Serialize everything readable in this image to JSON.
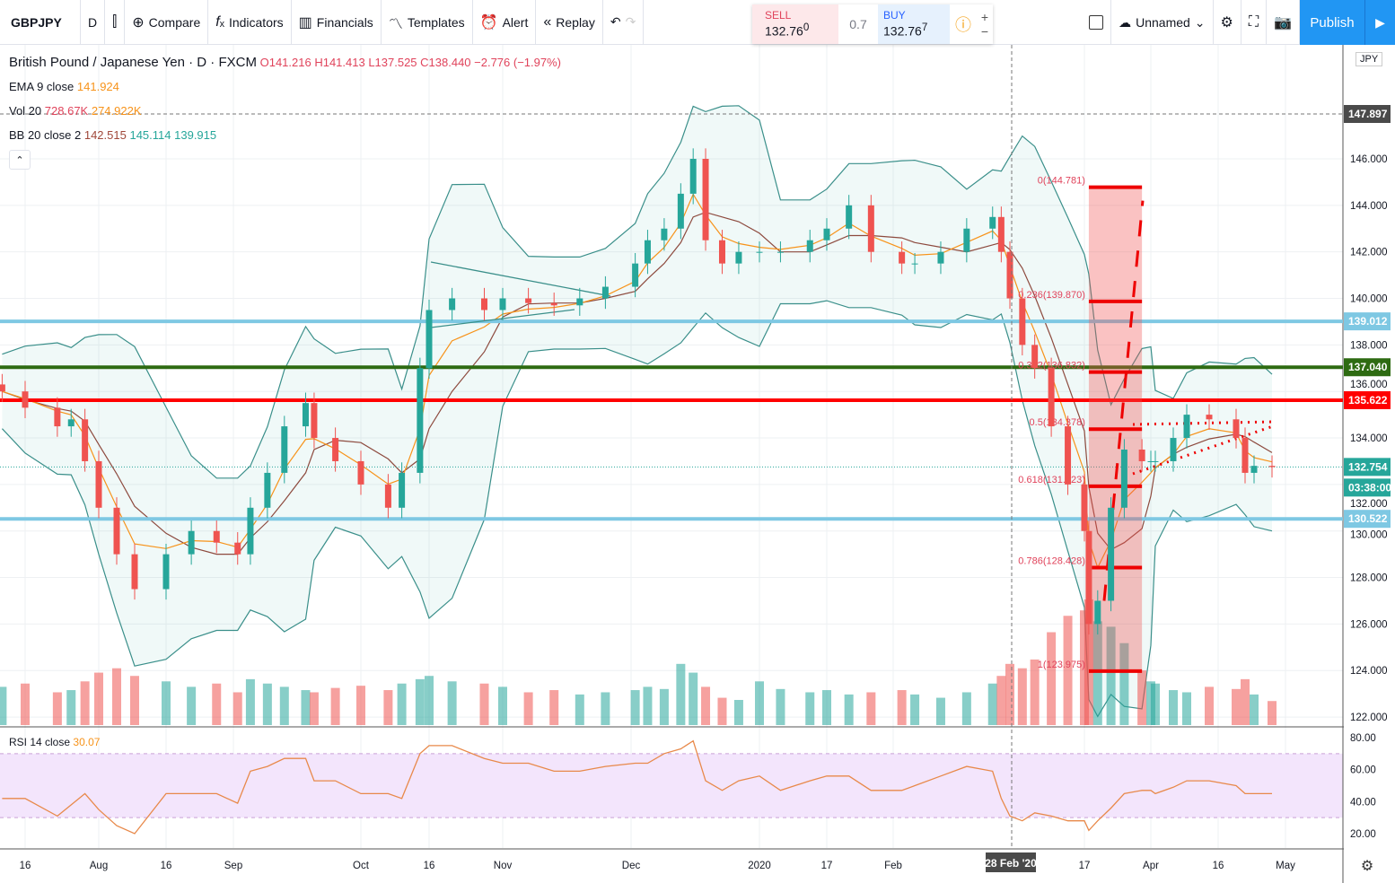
{
  "toolbar": {
    "symbol": "GBPJPY",
    "interval": "D",
    "compare": "Compare",
    "indicators": "Indicators",
    "financials": "Financials",
    "templates": "Templates",
    "alert": "Alert",
    "replay": "Replay",
    "layout_name": "Unnamed",
    "publish": "Publish"
  },
  "trade": {
    "sell_label": "SELL",
    "sell_price": "132.76",
    "sell_sup": "0",
    "spread": "0.7",
    "buy_label": "BUY",
    "buy_price": "132.76",
    "buy_sup": "7"
  },
  "legend": {
    "title": "British Pound / Japanese Yen · D · FXCM",
    "ohlc": "O141.216 H141.413 L137.525 C138.440 −2.776 (−1.97%)",
    "ema_label": "EMA 9 close",
    "ema_value": "141.924",
    "vol_label": "Vol 20",
    "vol_v1": "728.67K",
    "vol_v2": "274.922K",
    "bb_label": "BB 20 close 2",
    "bb_v1": "142.515",
    "bb_v2": "145.114",
    "bb_v3": "139.915",
    "rsi_label": "RSI 14 close",
    "rsi_value": "30.07",
    "currency": "JPY"
  },
  "colors": {
    "up": "#26a69a",
    "down": "#ef5350",
    "ema": "#f7931a",
    "sma": "#8d4a3e",
    "bb": "#3a8f8a",
    "support_blue": "#7ec8e3",
    "green_level": "#2e6b12",
    "red_level": "#ff0000",
    "fib": "#ee0000",
    "rsi": "#e8894a",
    "rsi_band": "#f3e5fc"
  },
  "levels": [
    {
      "price": 139.012,
      "label": "139.012",
      "color": "#7ec8e3"
    },
    {
      "price": 137.04,
      "label": "137.040",
      "color": "#2e6b12"
    },
    {
      "price": 135.622,
      "label": "135.622",
      "color": "#ff0000"
    },
    {
      "price": 130.522,
      "label": "130.522",
      "color": "#7ec8e3"
    }
  ],
  "current": {
    "price": 132.754,
    "label": "132.754",
    "countdown": "03:38:00"
  },
  "crosshair": {
    "price_label": "147.897",
    "date_label": "28 Feb '20"
  },
  "fib": [
    {
      "label": "0(144.781)",
      "price": 144.781
    },
    {
      "label": "0.236(139.870)",
      "price": 139.87
    },
    {
      "label": "0.382(136.832)",
      "price": 136.832
    },
    {
      "label": "0.5(134.378)",
      "price": 134.378
    },
    {
      "label": "0.618(131.923)",
      "price": 131.923
    },
    {
      "label": "0.786(128.428)",
      "price": 128.428
    },
    {
      "label": "1(123.975)",
      "price": 123.975
    }
  ],
  "chart_data": {
    "type": "candlestick",
    "price_ticks": [
      "146.000",
      "144.000",
      "142.000",
      "140.000",
      "138.000",
      "136.000",
      "134.000",
      "132.000",
      "130.000",
      "128.000",
      "126.000",
      "124.000",
      "122.000"
    ],
    "rsi_ticks": [
      "80.00",
      "60.00",
      "40.00",
      "20.00"
    ],
    "x_ticks": [
      "16",
      "Aug",
      "16",
      "Sep",
      "Oct",
      "16",
      "Nov",
      "Dec",
      "2020",
      "17",
      "Feb",
      "17",
      "Apr",
      "16",
      "May"
    ],
    "ylim": [
      121.5,
      148.5
    ],
    "rsi_ylim": [
      10,
      85
    ],
    "rsi_band": [
      30,
      70
    ],
    "grid": true,
    "dates": [
      "2019-07-11",
      "2019-07-16",
      "2019-07-23",
      "2019-07-26",
      "2019-07-29",
      "2019-08-01",
      "2019-08-05",
      "2019-08-09",
      "2019-08-16",
      "2019-08-22",
      "2019-08-28",
      "2019-09-02",
      "2019-09-05",
      "2019-09-09",
      "2019-09-13",
      "2019-09-18",
      "2019-09-20",
      "2019-09-25",
      "2019-10-01",
      "2019-10-07",
      "2019-10-10",
      "2019-10-14",
      "2019-10-16",
      "2019-10-21",
      "2019-10-28",
      "2019-11-01",
      "2019-11-07",
      "2019-11-13",
      "2019-11-19",
      "2019-11-25",
      "2019-12-02",
      "2019-12-05",
      "2019-12-09",
      "2019-12-13",
      "2019-12-16",
      "2019-12-19",
      "2019-12-23",
      "2019-12-27",
      "2020-01-01",
      "2020-01-06",
      "2020-01-13",
      "2020-01-17",
      "2020-01-22",
      "2020-01-27",
      "2020-02-03",
      "2020-02-06",
      "2020-02-12",
      "2020-02-18",
      "2020-02-24",
      "2020-02-26",
      "2020-02-28",
      "2020-03-02",
      "2020-03-05",
      "2020-03-09",
      "2020-03-13",
      "2020-03-17",
      "2020-03-18",
      "2020-03-20",
      "2020-03-23",
      "2020-03-26",
      "2020-03-30",
      "2020-04-01",
      "2020-04-02",
      "2020-04-06",
      "2020-04-09",
      "2020-04-14",
      "2020-04-20",
      "2020-04-22",
      "2020-04-24",
      "2020-04-28"
    ],
    "close": [
      136.0,
      135.3,
      134.5,
      134.8,
      133.0,
      131.0,
      129.0,
      127.5,
      129.0,
      130.0,
      129.5,
      129.0,
      131.0,
      132.5,
      134.5,
      135.5,
      134.0,
      133.0,
      132.0,
      131.0,
      132.5,
      137.0,
      139.5,
      140.0,
      139.5,
      140.0,
      139.8,
      139.7,
      140.0,
      140.5,
      141.5,
      142.5,
      143.0,
      144.5,
      146.0,
      142.5,
      141.5,
      142.0,
      142.0,
      142.0,
      142.5,
      143.0,
      144.0,
      142.0,
      141.5,
      141.5,
      142.0,
      143.0,
      143.5,
      142.0,
      140.0,
      138.0,
      137.0,
      134.5,
      132.0,
      130.0,
      126.0,
      127.0,
      131.0,
      133.5,
      133.0,
      133.0,
      133.0,
      134.0,
      135.0,
      134.8,
      134.0,
      132.5,
      132.8,
      132.75
    ],
    "volume_k": [
      350,
      380,
      300,
      320,
      400,
      480,
      520,
      450,
      400,
      350,
      380,
      300,
      420,
      380,
      350,
      320,
      300,
      340,
      360,
      320,
      380,
      420,
      450,
      400,
      380,
      350,
      300,
      320,
      280,
      300,
      320,
      350,
      330,
      560,
      480,
      350,
      250,
      230,
      400,
      330,
      300,
      320,
      280,
      300,
      320,
      280,
      250,
      300,
      380,
      450,
      560,
      520,
      600,
      850,
      1000,
      1050,
      1150,
      950,
      900,
      750,
      500,
      400,
      380,
      320,
      300,
      350,
      330,
      420,
      280,
      220
    ],
    "rsi": [
      42,
      42,
      31,
      38,
      45,
      35,
      25,
      20,
      45,
      45,
      45,
      39,
      59,
      62,
      67,
      67,
      53,
      53,
      45,
      45,
      42,
      70,
      75,
      75,
      67,
      64,
      64,
      59,
      59,
      62,
      64,
      64,
      70,
      73,
      78,
      53,
      47,
      53,
      56,
      47,
      53,
      56,
      56,
      47,
      47,
      50,
      56,
      62,
      59,
      42,
      31,
      28,
      33,
      31,
      28,
      28,
      22,
      28,
      36,
      45,
      47,
      47,
      45,
      49,
      53,
      53,
      50,
      45,
      45,
      45
    ]
  }
}
